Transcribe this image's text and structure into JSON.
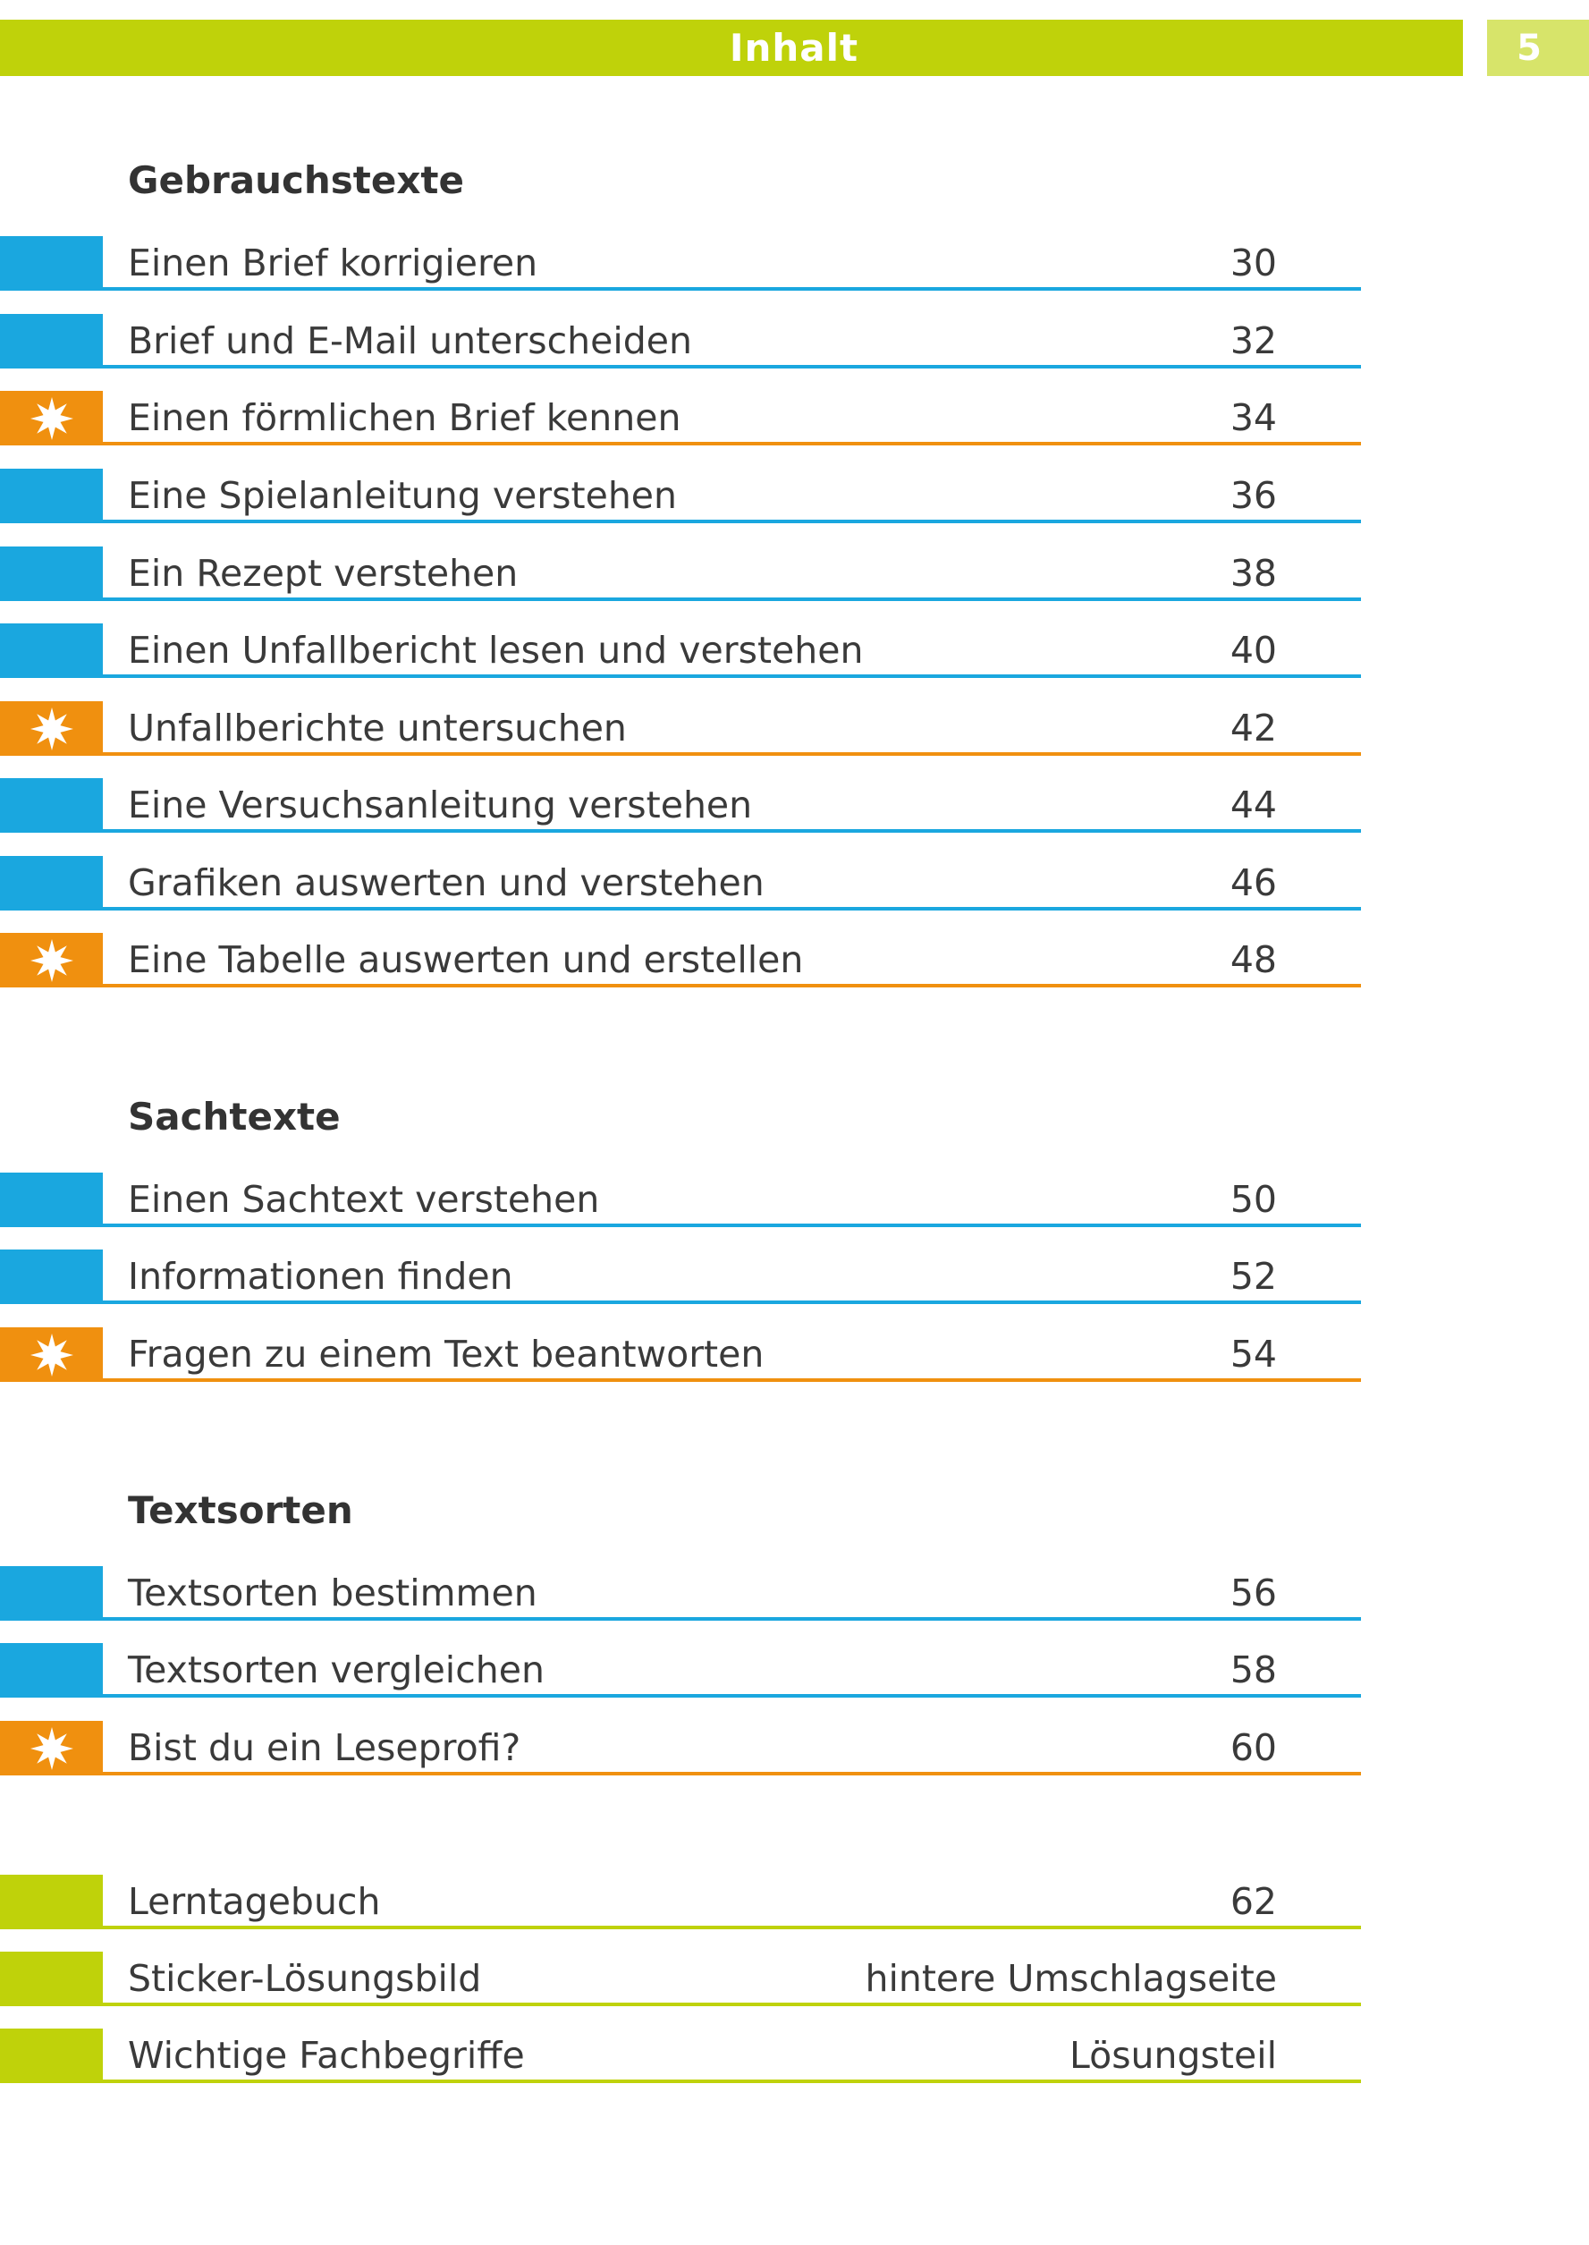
{
  "header": {
    "title": "Inhalt",
    "page_number": "5"
  },
  "sections": [
    {
      "title": "Gebrauchstexte",
      "items": [
        {
          "label": "Einen Brief korrigieren",
          "page": "30",
          "type": "blue"
        },
        {
          "label": "Brief und E-Mail unterscheiden",
          "page": "32",
          "type": "blue"
        },
        {
          "label": "Einen förmlichen Brief kennen",
          "page": "34",
          "type": "star"
        },
        {
          "label": "Eine Spielanleitung verstehen",
          "page": "36",
          "type": "blue"
        },
        {
          "label": "Ein Rezept verstehen",
          "page": "38",
          "type": "blue"
        },
        {
          "label": "Einen Unfallbericht lesen und verstehen",
          "page": "40",
          "type": "blue"
        },
        {
          "label": "Unfallberichte untersuchen",
          "page": "42",
          "type": "star"
        },
        {
          "label": "Eine Versuchsanleitung verstehen",
          "page": "44",
          "type": "blue"
        },
        {
          "label": "Grafiken auswerten und verstehen",
          "page": "46",
          "type": "blue"
        },
        {
          "label": "Eine Tabelle auswerten und erstellen",
          "page": "48",
          "type": "star"
        }
      ]
    },
    {
      "title": "Sachtexte",
      "items": [
        {
          "label": "Einen Sachtext verstehen",
          "page": "50",
          "type": "blue"
        },
        {
          "label": "Informationen finden",
          "page": "52",
          "type": "blue"
        },
        {
          "label": "Fragen zu einem Text beantworten",
          "page": "54",
          "type": "star"
        }
      ]
    },
    {
      "title": "Textsorten",
      "items": [
        {
          "label": "Textsorten bestimmen",
          "page": "56",
          "type": "blue"
        },
        {
          "label": "Textsorten vergleichen",
          "page": "58",
          "type": "blue"
        },
        {
          "label": "Bist du ein Leseprofi?",
          "page": "60",
          "type": "star"
        }
      ]
    }
  ],
  "appendix": [
    {
      "label": "Lerntagebuch",
      "page": "62"
    },
    {
      "label": "Sticker-Lösungsbild",
      "page": "hintere Umschlagseite"
    },
    {
      "label": "Wichtige Fachbegriffe",
      "page": "Lösungsteil"
    }
  ],
  "colors": {
    "lime": "#bfd20a",
    "blue": "#1aa7df",
    "orange": "#f0900f"
  },
  "icons": {
    "star_marker": "star-icon"
  }
}
